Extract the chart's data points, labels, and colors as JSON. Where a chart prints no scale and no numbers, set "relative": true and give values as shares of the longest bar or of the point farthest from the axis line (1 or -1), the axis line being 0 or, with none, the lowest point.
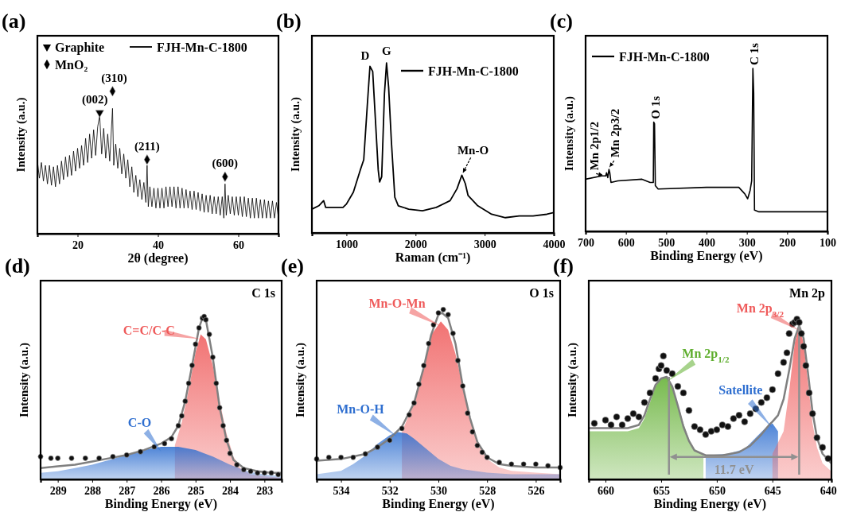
{
  "chart_data": [
    {
      "type": "line",
      "title": "(a)",
      "xlabel": "2θ (degree)",
      "ylabel": "Intensity (a.u.)",
      "relative": true,
      "xlim": [
        10,
        70
      ],
      "xticks": [
        20,
        40,
        60
      ],
      "legend": "top",
      "annotations": [
        {
          "text": "(002)",
          "x": 25.5,
          "y": 0.85
        },
        {
          "text": "(310)",
          "x": 28.7,
          "y": 1.0
        },
        {
          "text": "(211)",
          "x": 37.3,
          "y": 0.52
        },
        {
          "text": "(600)",
          "x": 56.7,
          "y": 0.4
        }
      ],
      "series": [
        {
          "type": "scatter",
          "name": "Graphite",
          "marker": "triangle",
          "color": "#000000",
          "x": [
            25.5
          ],
          "values": [
            0.85
          ]
        },
        {
          "type": "scatter",
          "name": "MnO₂",
          "marker": "diamond",
          "color": "#000000",
          "x": [
            28.7,
            37.3,
            56.7
          ],
          "values": [
            1.0,
            0.52,
            0.4
          ]
        },
        {
          "type": "line",
          "name": "FJH-Mn-C-1800",
          "color": "#000000",
          "x": [
            10,
            10.5,
            11,
            11.5,
            12,
            12.5,
            13,
            13.5,
            14,
            14.5,
            15,
            15.5,
            16,
            16.5,
            17,
            17.5,
            18,
            18.5,
            19,
            19.5,
            20,
            20.5,
            21,
            21.5,
            22,
            22.5,
            23,
            23.5,
            24,
            24.5,
            25,
            25.5,
            26,
            26.5,
            27,
            27.5,
            28,
            28.7,
            29,
            29.5,
            30,
            30.5,
            31,
            31.5,
            32,
            32.5,
            33,
            33.5,
            34,
            34.5,
            35,
            35.5,
            36,
            36.5,
            37,
            37.3,
            37.6,
            38,
            38.5,
            39,
            39.5,
            40,
            40.5,
            41,
            41.5,
            42,
            42.5,
            43,
            43.5,
            44,
            44.5,
            45,
            45.5,
            46,
            46.5,
            47,
            47.5,
            48,
            48.5,
            49,
            49.5,
            50,
            50.5,
            51,
            51.5,
            52,
            52.5,
            53,
            53.5,
            54,
            54.5,
            55,
            55.5,
            56,
            56.4,
            56.7,
            57,
            57.5,
            58,
            58.5,
            59,
            59.5,
            60,
            60.5,
            61,
            61.5,
            62,
            62.5,
            63,
            63.5,
            64,
            64.5,
            65,
            65.5,
            66,
            66.5,
            67,
            67.5,
            68,
            68.5,
            69,
            69.5,
            70
          ],
          "values": [
            0.51,
            0.39,
            0.5,
            0.37,
            0.48,
            0.35,
            0.48,
            0.34,
            0.47,
            0.33,
            0.48,
            0.35,
            0.51,
            0.38,
            0.54,
            0.4,
            0.55,
            0.41,
            0.58,
            0.44,
            0.6,
            0.46,
            0.62,
            0.48,
            0.67,
            0.5,
            0.7,
            0.53,
            0.73,
            0.55,
            0.75,
            0.83,
            0.56,
            0.74,
            0.53,
            0.7,
            0.51,
            0.88,
            0.48,
            0.63,
            0.46,
            0.6,
            0.42,
            0.56,
            0.39,
            0.52,
            0.33,
            0.47,
            0.29,
            0.41,
            0.26,
            0.38,
            0.24,
            0.36,
            0.22,
            0.48,
            0.19,
            0.33,
            0.19,
            0.32,
            0.18,
            0.32,
            0.18,
            0.32,
            0.18,
            0.33,
            0.19,
            0.33,
            0.19,
            0.33,
            0.18,
            0.33,
            0.18,
            0.32,
            0.18,
            0.31,
            0.18,
            0.3,
            0.17,
            0.3,
            0.17,
            0.29,
            0.16,
            0.28,
            0.15,
            0.27,
            0.15,
            0.27,
            0.14,
            0.26,
            0.14,
            0.26,
            0.13,
            0.26,
            0.11,
            0.35,
            0.13,
            0.27,
            0.14,
            0.26,
            0.13,
            0.26,
            0.13,
            0.26,
            0.12,
            0.26,
            0.12,
            0.25,
            0.11,
            0.25,
            0.11,
            0.25,
            0.11,
            0.24,
            0.11,
            0.24,
            0.11,
            0.23,
            0.11,
            0.23,
            0.11,
            0.22,
            0.11
          ]
        }
      ]
    },
    {
      "type": "line",
      "title": "(b)",
      "xlabel": "Raman (cm⁻¹)",
      "ylabel": "Intensity (a.u.)",
      "relative": true,
      "xlim": [
        500,
        4000
      ],
      "xticks": [
        1000,
        2000,
        3000,
        4000
      ],
      "legend": "top right",
      "annotations": [
        {
          "text": "D",
          "x": 1340,
          "y": 0.98
        },
        {
          "text": "G",
          "x": 1580,
          "y": 1.0
        },
        {
          "text": "Mn-O",
          "x": 2670,
          "y": 0.34
        }
      ],
      "series": [
        {
          "type": "line",
          "name": "FJH-Mn-C-1800",
          "color": "#000000",
          "x": [
            500,
            600,
            670,
            700,
            800,
            950,
            1000,
            1100,
            1200,
            1250,
            1300,
            1340,
            1380,
            1420,
            1460,
            1480,
            1510,
            1550,
            1580,
            1610,
            1650,
            1700,
            1750,
            1900,
            2100,
            2300,
            2500,
            2600,
            2670,
            2720,
            2760,
            2900,
            3100,
            3300,
            3500,
            3700,
            3900,
            4000
          ],
          "values": [
            0.14,
            0.16,
            0.19,
            0.15,
            0.15,
            0.15,
            0.17,
            0.24,
            0.37,
            0.43,
            0.74,
            0.98,
            0.95,
            0.66,
            0.37,
            0.3,
            0.33,
            0.82,
            1.0,
            0.86,
            0.54,
            0.21,
            0.16,
            0.14,
            0.13,
            0.15,
            0.19,
            0.26,
            0.34,
            0.29,
            0.22,
            0.16,
            0.11,
            0.09,
            0.1,
            0.1,
            0.11,
            0.12
          ]
        }
      ]
    },
    {
      "type": "line",
      "title": "(c)",
      "xlabel": "Binding Energy (eV)",
      "ylabel": "Intensity (a.u.)",
      "relative": true,
      "xlim": [
        700,
        100
      ],
      "xticks": [
        700,
        600,
        500,
        400,
        300,
        200,
        100
      ],
      "legend": "top left",
      "annotations": [
        {
          "text": "Mn 2p1/2",
          "x": 655,
          "y": 0.33
        },
        {
          "text": "Mn 2p3/2",
          "x": 642,
          "y": 0.38
        },
        {
          "text": "O 1s",
          "x": 531,
          "y": 0.67
        },
        {
          "text": "C 1s",
          "x": 285,
          "y": 1.0
        }
      ],
      "series": [
        {
          "type": "line",
          "name": "FJH-Mn-C-1800",
          "color": "#000000",
          "x": [
            700,
            660,
            650,
            648,
            645,
            642,
            640,
            637,
            620,
            560,
            540,
            532,
            531,
            529,
            527,
            520,
            400,
            340,
            320,
            305,
            298,
            292,
            288,
            285,
            283,
            281,
            270,
            100
          ],
          "values": [
            0.32,
            0.34,
            0.34,
            0.36,
            0.33,
            0.38,
            0.36,
            0.3,
            0.31,
            0.32,
            0.3,
            0.3,
            0.67,
            0.66,
            0.28,
            0.26,
            0.27,
            0.27,
            0.27,
            0.23,
            0.2,
            0.25,
            0.31,
            1.0,
            0.85,
            0.13,
            0.12,
            0.12
          ]
        }
      ]
    },
    {
      "type": "line",
      "title": "(d)",
      "xlabel": "Binding Energy (eV)",
      "ylabel": "Intensity (a.u.)",
      "relative": true,
      "xlim": [
        289.5,
        282.5
      ],
      "xticks": [
        289,
        288,
        287,
        286,
        285,
        284,
        283
      ],
      "annotations": [
        "C 1s"
      ],
      "series": [
        {
          "type": "area",
          "name": "C=C/C-C",
          "color": "#ef5a5a",
          "x": [
            285.6,
            285.4,
            285.2,
            285,
            284.85,
            284.7,
            284.5,
            284.3,
            284.1,
            283.9,
            283.7,
            283.4,
            283,
            282.5
          ],
          "values": [
            0.21,
            0.35,
            0.55,
            0.78,
            0.89,
            0.86,
            0.7,
            0.48,
            0.28,
            0.14,
            0.07,
            0.03,
            0.02,
            0.01
          ]
        },
        {
          "type": "area",
          "name": "C-O",
          "color": "#2f6fd0",
          "x": [
            289.5,
            289,
            288.5,
            288,
            287.5,
            287,
            286.5,
            286,
            285.5,
            285,
            284.5,
            284,
            283.5,
            283,
            282.5
          ],
          "values": [
            0.04,
            0.05,
            0.07,
            0.09,
            0.12,
            0.15,
            0.18,
            0.2,
            0.2,
            0.18,
            0.14,
            0.09,
            0.05,
            0.03,
            0.02
          ]
        },
        {
          "type": "line",
          "color": "#808080",
          "x": [
            289.5,
            289,
            288.5,
            288,
            287.5,
            287,
            286.5,
            286,
            285.7,
            285.5,
            285.3,
            285.1,
            284.9,
            284.8,
            284.7,
            284.5,
            284.3,
            284.1,
            283.9,
            283.6,
            283.2,
            282.8,
            282.5
          ],
          "values": [
            0.07,
            0.08,
            0.09,
            0.11,
            0.13,
            0.15,
            0.18,
            0.22,
            0.26,
            0.33,
            0.48,
            0.7,
            0.93,
            0.99,
            0.98,
            0.75,
            0.44,
            0.24,
            0.12,
            0.07,
            0.05,
            0.04,
            0.04
          ]
        },
        {
          "type": "scatter",
          "marker": "circle",
          "color": "#111111",
          "x": [
            289.5,
            289.2,
            289,
            288.6,
            288.2,
            287.8,
            287.4,
            287,
            286.6,
            286.2,
            285.9,
            285.7,
            285.5,
            285.4,
            285.3,
            285.2,
            285.1,
            285,
            284.9,
            284.8,
            284.75,
            284.7,
            284.6,
            284.5,
            284.4,
            284.3,
            284.2,
            284.1,
            284,
            283.8,
            283.6,
            283.4,
            283.2,
            283,
            282.8,
            282.6
          ],
          "values": [
            0.14,
            0.13,
            0.13,
            0.13,
            0.13,
            0.13,
            0.14,
            0.15,
            0.17,
            0.2,
            0.22,
            0.25,
            0.33,
            0.39,
            0.48,
            0.59,
            0.7,
            0.83,
            0.93,
            0.99,
            1.0,
            0.98,
            0.89,
            0.75,
            0.59,
            0.44,
            0.33,
            0.24,
            0.16,
            0.09,
            0.06,
            0.05,
            0.04,
            0.04,
            0.04,
            0.03
          ]
        }
      ]
    },
    {
      "type": "line",
      "title": "(e)",
      "xlabel": "Binding Energy (eV)",
      "ylabel": "Intensity (a.u.)",
      "relative": true,
      "xlim": [
        535,
        525
      ],
      "xticks": [
        534,
        532,
        530,
        528,
        526
      ],
      "annotations": [
        "O 1s"
      ],
      "series": [
        {
          "type": "area",
          "name": "Mn-O-Mn",
          "color": "#ef5a5a",
          "x": [
            531.5,
            531,
            530.6,
            530.3,
            529.9,
            529.6,
            529.3,
            529,
            528.7,
            528.4,
            528,
            527.5,
            527,
            526,
            525
          ],
          "values": [
            0.28,
            0.45,
            0.66,
            0.85,
            0.93,
            0.88,
            0.74,
            0.55,
            0.36,
            0.22,
            0.12,
            0.07,
            0.05,
            0.04,
            0.03
          ]
        },
        {
          "type": "area",
          "name": "Mn-O-H",
          "color": "#2f6fd0",
          "x": [
            535,
            534,
            533.5,
            533,
            532.5,
            532,
            531.7,
            531.3,
            531,
            530.5,
            530,
            529.5,
            529,
            528,
            527,
            525
          ],
          "values": [
            0.03,
            0.05,
            0.09,
            0.14,
            0.21,
            0.26,
            0.28,
            0.27,
            0.24,
            0.18,
            0.12,
            0.08,
            0.06,
            0.04,
            0.03,
            0.03
          ]
        },
        {
          "type": "line",
          "color": "#808080",
          "x": [
            535,
            534,
            533,
            532.5,
            532,
            531.5,
            531,
            530.6,
            530.3,
            530,
            529.85,
            529.6,
            529.3,
            529,
            528.7,
            528.4,
            528,
            527.5,
            527,
            526,
            525
          ],
          "values": [
            0.11,
            0.12,
            0.15,
            0.19,
            0.24,
            0.31,
            0.45,
            0.66,
            0.85,
            0.97,
            0.98,
            0.95,
            0.8,
            0.55,
            0.36,
            0.22,
            0.13,
            0.09,
            0.08,
            0.07,
            0.07
          ]
        },
        {
          "type": "scatter",
          "marker": "circle",
          "color": "#111111",
          "x": [
            535,
            534.5,
            534,
            533.5,
            533,
            532.5,
            532,
            531.5,
            531.2,
            531,
            530.8,
            530.6,
            530.4,
            530.2,
            530,
            529.8,
            529.6,
            529.4,
            529.2,
            529,
            528.8,
            528.6,
            528.4,
            528.2,
            528,
            527.5,
            527,
            526.5,
            526,
            525.5,
            525
          ],
          "values": [
            0.12,
            0.13,
            0.13,
            0.13,
            0.15,
            0.19,
            0.23,
            0.3,
            0.38,
            0.45,
            0.56,
            0.67,
            0.8,
            0.91,
            0.98,
            1.0,
            0.97,
            0.86,
            0.7,
            0.55,
            0.39,
            0.28,
            0.2,
            0.16,
            0.13,
            0.1,
            0.09,
            0.09,
            0.09,
            0.08,
            0.07
          ]
        }
      ]
    },
    {
      "type": "line",
      "title": "(f)",
      "xlabel": "Binding Energy (eV)",
      "ylabel": "Intensity (a.u.)",
      "relative": true,
      "xlim": [
        661.5,
        639.7
      ],
      "xticks": [
        660,
        655,
        650,
        645,
        640
      ],
      "annotations": [
        "Mn 2p",
        {
          "text": "11.7 eV",
          "x": 648.45,
          "y": 0.14
        }
      ],
      "ref_lines": [
        {
          "axis": "x",
          "value": 654.3,
          "color": "#909090"
        },
        {
          "axis": "x",
          "value": 642.6,
          "color": "#909090"
        }
      ],
      "series": [
        {
          "type": "area",
          "name": "Mn 2p$_{1/2}$",
          "color": "#5fae2e",
          "x": [
            661.5,
            658,
            657,
            656.5,
            656,
            655.5,
            655,
            654.5,
            654,
            653.5,
            653,
            652.5,
            652,
            651.2
          ],
          "values": [
            0.3,
            0.3,
            0.32,
            0.38,
            0.48,
            0.58,
            0.63,
            0.64,
            0.58,
            0.47,
            0.35,
            0.25,
            0.19,
            0.16
          ]
        },
        {
          "type": "area",
          "name": "Satellite",
          "color": "#2f6fd0",
          "x": [
            651,
            649,
            647.5,
            646.5,
            645.5,
            645,
            644.5
          ],
          "values": [
            0.15,
            0.16,
            0.19,
            0.26,
            0.33,
            0.35,
            0.3
          ]
        },
        {
          "type": "area",
          "name": "Mn 2p$_{3/2}$",
          "color": "#ef5a5a",
          "x": [
            645,
            644,
            643.5,
            643,
            642.6,
            642.2,
            641.8,
            641.4,
            641,
            640.5,
            639.7
          ],
          "values": [
            0.16,
            0.3,
            0.55,
            0.85,
            0.96,
            0.85,
            0.6,
            0.35,
            0.2,
            0.1,
            0.05
          ]
        },
        {
          "type": "line",
          "color": "#808080",
          "x": [
            661.5,
            658,
            657,
            656.5,
            656,
            655.5,
            655,
            654.5,
            654,
            653.5,
            653,
            652.5,
            652,
            651,
            649.5,
            648,
            647,
            646,
            645.3,
            645,
            644.5,
            644,
            643.5,
            643,
            642.6,
            642.2,
            641.8,
            641.4,
            641,
            640.5,
            639.7
          ],
          "values": [
            0.32,
            0.32,
            0.34,
            0.4,
            0.5,
            0.59,
            0.63,
            0.64,
            0.58,
            0.46,
            0.33,
            0.24,
            0.18,
            0.15,
            0.15,
            0.17,
            0.21,
            0.28,
            0.34,
            0.36,
            0.4,
            0.5,
            0.68,
            0.88,
            0.96,
            0.88,
            0.66,
            0.42,
            0.26,
            0.16,
            0.1
          ]
        },
        {
          "type": "scatter",
          "marker": "circle",
          "color": "#111111",
          "x": [
            661,
            660,
            659.5,
            659,
            658.5,
            658,
            657.5,
            657,
            656.5,
            656,
            655.5,
            655.2,
            655,
            654.8,
            654.5,
            654,
            653.5,
            653,
            652.5,
            652,
            651.5,
            651,
            650.5,
            650,
            649.5,
            649,
            648.5,
            648,
            647.5,
            647,
            646.5,
            646,
            645.5,
            645,
            644.5,
            644,
            643.7,
            643.5,
            643.2,
            643,
            642.8,
            642.6,
            642.4,
            642.2,
            642,
            641.7,
            641.4,
            641,
            640.5,
            640
          ],
          "values": [
            0.35,
            0.37,
            0.34,
            0.39,
            0.34,
            0.38,
            0.41,
            0.39,
            0.48,
            0.54,
            0.63,
            0.69,
            0.71,
            0.77,
            0.68,
            0.66,
            0.58,
            0.54,
            0.43,
            0.33,
            0.31,
            0.28,
            0.3,
            0.31,
            0.34,
            0.33,
            0.38,
            0.4,
            0.36,
            0.41,
            0.44,
            0.48,
            0.51,
            0.56,
            0.66,
            0.73,
            0.79,
            0.91,
            0.97,
            0.98,
            1.0,
            0.98,
            0.91,
            0.83,
            0.71,
            0.54,
            0.41,
            0.26,
            0.2,
            0.13
          ]
        }
      ]
    }
  ]
}
